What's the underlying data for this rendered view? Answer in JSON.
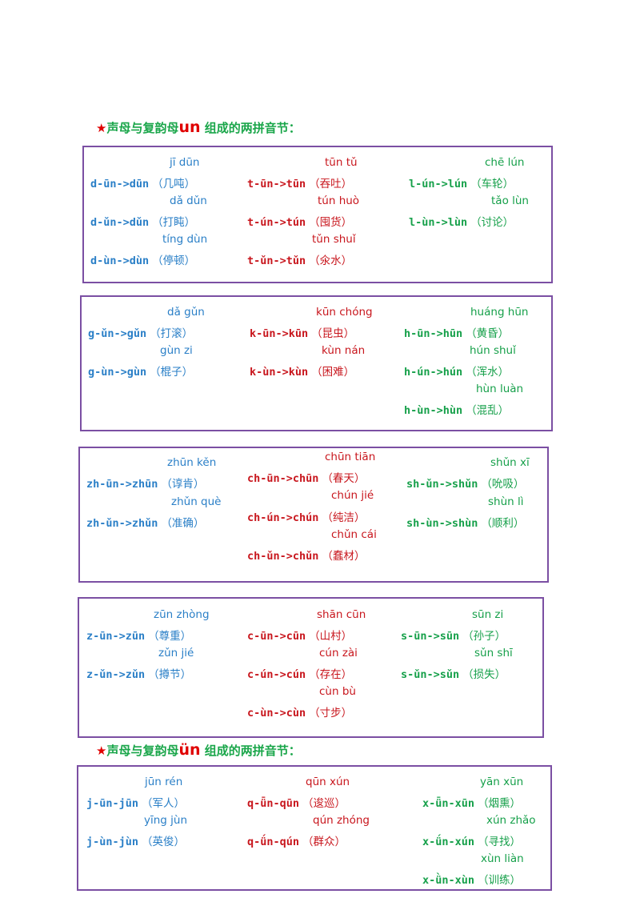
{
  "heading1": {
    "star": "★",
    "prefix": "声母与复韵母",
    "final": "un",
    "suffix": " 组成的两拼音节："
  },
  "heading2": {
    "star": "★",
    "prefix": "声母与复韵母",
    "final": "ün",
    "suffix": " 组成的两拼音节："
  },
  "colors": {
    "blue": "#2a7fc7",
    "red": "#c8161d",
    "green": "#16a04a",
    "border": "#7b4fa3"
  },
  "boxes": [
    {
      "col1": [
        {
          "pinyin": "jī dūn",
          "spell": "d-ūn->dūn",
          "word": "（几吨）"
        },
        {
          "pinyin": "dǎ dǔn",
          "spell": "d-ǔn->dǔn",
          "word": "（打盹）"
        },
        {
          "pinyin": "tíng dùn",
          "spell": "d-ùn->dùn",
          "word": "（停顿）"
        }
      ],
      "col2": [
        {
          "pinyin": "tūn tǔ",
          "spell": "t-ūn->tūn",
          "word": "（吞吐）"
        },
        {
          "pinyin": "tún huò",
          "spell": "t-ún->tún",
          "word": "（囤货）"
        },
        {
          "pinyin": "tǔn shuǐ",
          "spell": "t-ǔn->tǔn",
          "word": "（氽水）"
        }
      ],
      "col3": [
        {
          "pinyin": "chē lún",
          "spell": "l-ún->lún",
          "word": "（车轮）"
        },
        {
          "pinyin": "tǎo lùn",
          "spell": "l-ùn->lùn",
          "word": "（讨论）"
        }
      ]
    },
    {
      "col1": [
        {
          "pinyin": "dǎ gǔn",
          "spell": "g-ǔn->gǔn",
          "word": "（打滚）"
        },
        {
          "pinyin": "gùn zi",
          "spell": "g-ùn->gùn",
          "word": "（棍子）"
        }
      ],
      "col2": [
        {
          "pinyin": "kūn chóng",
          "spell": "k-ūn->kūn",
          "word": "（昆虫）"
        },
        {
          "pinyin": "kùn nán",
          "spell": "k-ùn->kùn",
          "word": "（困难）"
        }
      ],
      "col3": [
        {
          "pinyin": "huáng hūn",
          "spell": "h-ūn->hūn",
          "word": "（黄昏）"
        },
        {
          "pinyin": "hún shuǐ",
          "spell": "h-ún->hún",
          "word": "（浑水）"
        },
        {
          "pinyin": "hùn luàn",
          "spell": "h-ùn->hùn",
          "word": "（混乱）"
        }
      ]
    },
    {
      "col1": [
        {
          "pinyin": "zhūn kěn",
          "spell": "zh-ūn->zhūn",
          "word": "（谆肯）"
        },
        {
          "pinyin": "zhǔn què",
          "spell": "zh-ǔn->zhǔn",
          "word": "（准确）"
        }
      ],
      "col2": [
        {
          "pinyin": "chūn tiān",
          "spell": "ch-ūn->chūn",
          "word": "（春天）"
        },
        {
          "pinyin": "chún jié",
          "spell": "ch-ún->chún",
          "word": "（纯洁）"
        },
        {
          "pinyin": "chǔn cái",
          "spell": "ch-ǔn->chǔn",
          "word": "（蠢材）"
        }
      ],
      "col3": [
        {
          "pinyin": "shǔn xī",
          "spell": "sh-ǔn->shǔn",
          "word": "（吮吸）"
        },
        {
          "pinyin": "shùn lì",
          "spell": "sh-ùn->shùn",
          "word": "（顺利）"
        }
      ]
    },
    {
      "col1": [
        {
          "pinyin": "zūn zhòng",
          "spell": "z-ūn->zūn",
          "word": "（尊重）"
        },
        {
          "pinyin": "zǔn jié",
          "spell": "z-ǔn->zǔn",
          "word": "（撙节）"
        }
      ],
      "col2": [
        {
          "pinyin": "shān cūn",
          "spell": "c-ūn->cūn",
          "word": "（山村）"
        },
        {
          "pinyin": "cún zài",
          "spell": "c-ún->cún",
          "word": "（存在）"
        },
        {
          "pinyin": "cùn bù",
          "spell": "c-ùn->cùn",
          "word": "（寸步）"
        }
      ],
      "col3": [
        {
          "pinyin": "sūn zi",
          "spell": "s-ūn->sūn",
          "word": "（孙子）"
        },
        {
          "pinyin": "sǔn shī",
          "spell": "s-ǔn->sǔn",
          "word": "（损失）"
        }
      ]
    },
    {
      "col1": [
        {
          "pinyin": "jūn rén",
          "spell": "j-ūn-jūn",
          "word": "（军人）"
        },
        {
          "pinyin": "yīng jùn",
          "spell": "j-ùn-jùn",
          "word": "（英俊）"
        }
      ],
      "col2": [
        {
          "pinyin": "qūn xún",
          "spell": "q-ǖn-qūn",
          "word": "（逡巡）"
        },
        {
          "pinyin": "qún zhóng",
          "spell": "q-ǘn-qún",
          "word": "（群众）"
        }
      ],
      "col3": [
        {
          "pinyin": "yān xūn",
          "spell": "x-ǖn-xūn",
          "word": "（烟熏）"
        },
        {
          "pinyin": "xún zhǎo",
          "spell": "x-ǘn-xún",
          "word": "（寻找）"
        },
        {
          "pinyin": "xùn liàn",
          "spell": "x-ǜn-xùn",
          "word": "（训练）"
        }
      ]
    }
  ]
}
